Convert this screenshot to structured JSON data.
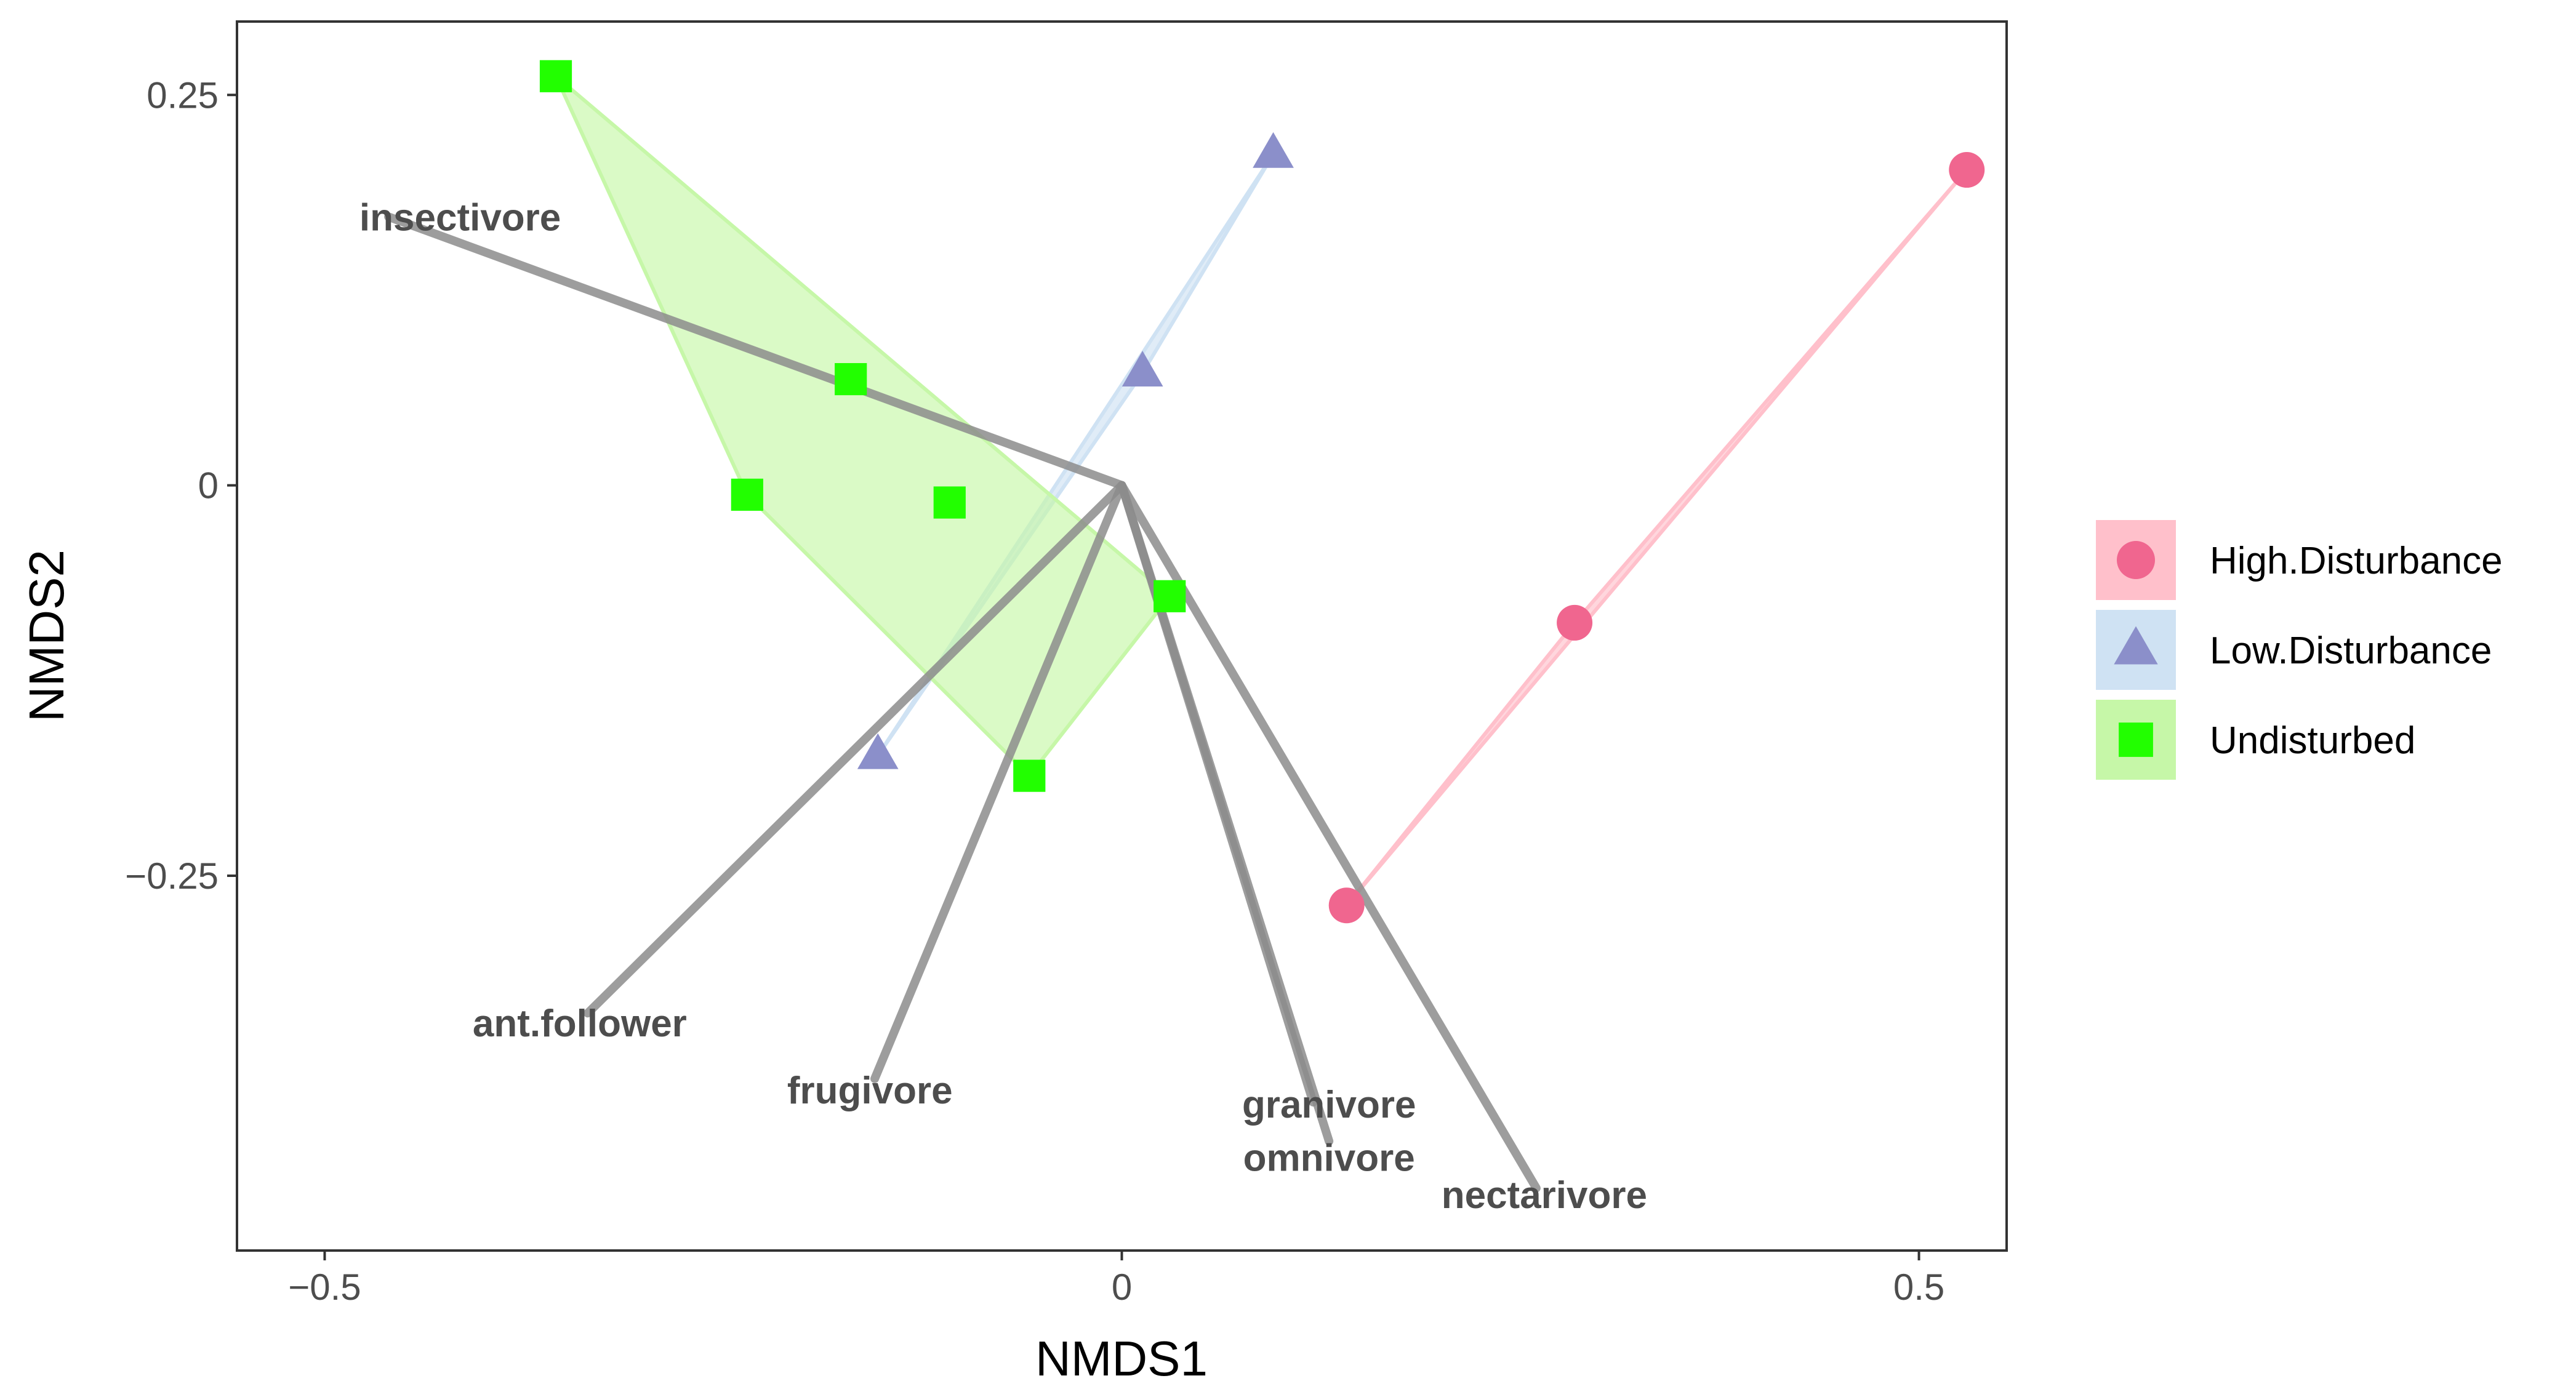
{
  "chart_data": {
    "type": "scatter",
    "xlabel": "NMDS1",
    "ylabel": "NMDS2",
    "xlim": [
      -0.555,
      0.555
    ],
    "ylim": [
      -0.49,
      0.297
    ],
    "x_ticks": [
      -0.5,
      0,
      0.5
    ],
    "x_tick_labels": [
      "−0.5",
      "0",
      "0.5"
    ],
    "y_ticks": [
      0.25,
      0,
      -0.25
    ],
    "y_tick_labels": [
      "0.25",
      "0",
      "−0.25"
    ],
    "grid": false,
    "legend_position": "right",
    "series": [
      {
        "name": "High.Disturbance",
        "marker": "circle",
        "color": "#f0668f",
        "hull_color": "#ffc0cb",
        "points": [
          [
            0.53,
            0.202
          ],
          [
            0.284,
            -0.088
          ],
          [
            0.141,
            -0.269
          ]
        ]
      },
      {
        "name": "Low.Disturbance",
        "marker": "triangle",
        "color": "#8b8fca",
        "hull_color": "#cfe2f3",
        "points": [
          [
            0.095,
            0.212
          ],
          [
            0.013,
            0.072
          ],
          [
            -0.153,
            -0.173
          ]
        ]
      },
      {
        "name": "Undisturbed",
        "marker": "square",
        "color": "#22ff00",
        "hull_color": "#c6f7a8",
        "points": [
          [
            -0.355,
            0.262
          ],
          [
            -0.17,
            0.068
          ],
          [
            -0.235,
            -0.006
          ],
          [
            -0.108,
            -0.011
          ],
          [
            0.03,
            -0.071
          ],
          [
            -0.058,
            -0.186
          ]
        ]
      }
    ],
    "vectors": [
      {
        "label": "insectivore",
        "x": -0.46,
        "y": 0.172,
        "label_x": -0.415,
        "label_y": 0.171
      },
      {
        "label": "ant.follower",
        "x": -0.335,
        "y": -0.338,
        "label_x": -0.34,
        "label_y": -0.345
      },
      {
        "label": "frugivore",
        "x": -0.155,
        "y": -0.38,
        "label_x": -0.158,
        "label_y": -0.388
      },
      {
        "label": "granivore",
        "x": 0.12,
        "y": -0.395,
        "label_x": 0.13,
        "label_y": -0.397
      },
      {
        "label": "omnivore",
        "x": 0.13,
        "y": -0.42,
        "label_x": 0.13,
        "label_y": -0.431
      },
      {
        "label": "nectarivore",
        "x": 0.26,
        "y": -0.45,
        "label_x": 0.265,
        "label_y": -0.455
      }
    ]
  }
}
